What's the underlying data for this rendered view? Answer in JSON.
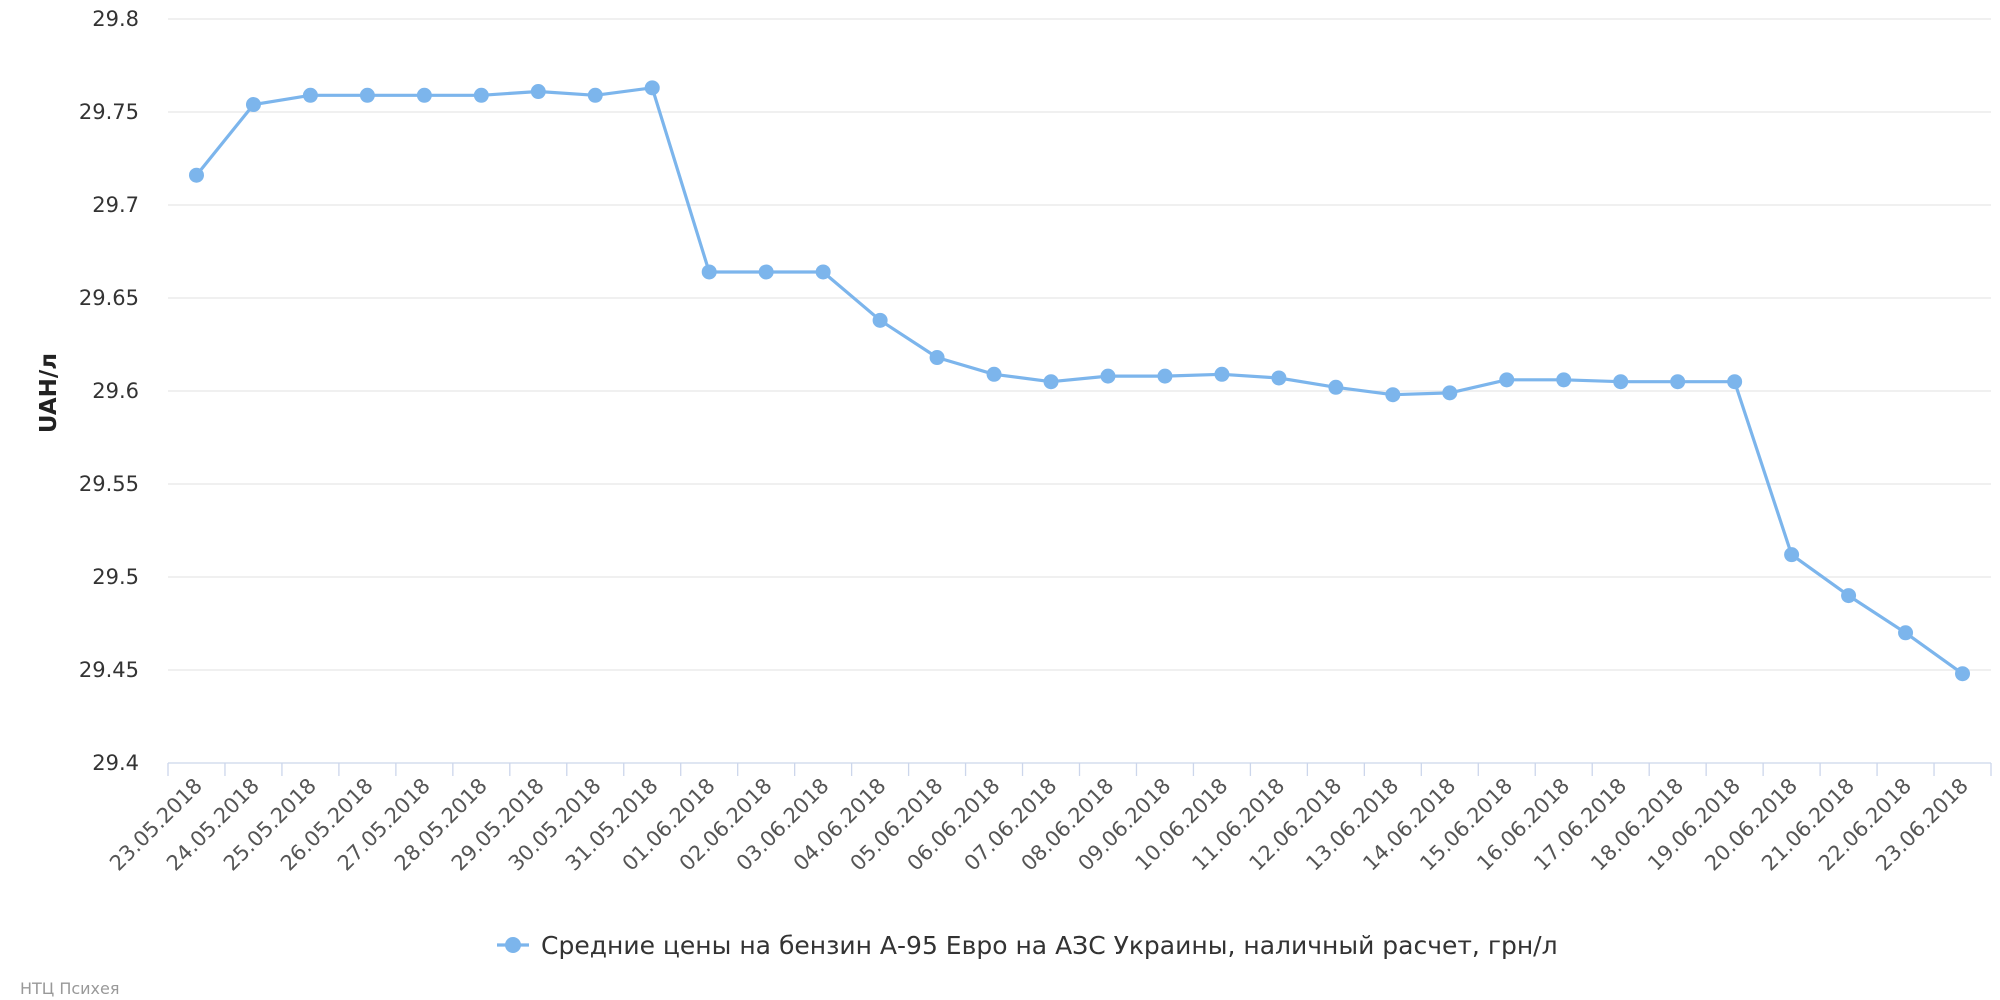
{
  "chart_data": {
    "type": "line",
    "ylabel": "UAH/л",
    "ylim": [
      29.4,
      29.8
    ],
    "yticks": [
      "29.4",
      "29.45",
      "29.5",
      "29.55",
      "29.6",
      "29.65",
      "29.7",
      "29.75",
      "29.8"
    ],
    "grid": true,
    "legend_position": "bottom-center",
    "categories": [
      "23.05.2018",
      "24.05.2018",
      "25.05.2018",
      "26.05.2018",
      "27.05.2018",
      "28.05.2018",
      "29.05.2018",
      "30.05.2018",
      "31.05.2018",
      "01.06.2018",
      "02.06.2018",
      "03.06.2018",
      "04.06.2018",
      "05.06.2018",
      "06.06.2018",
      "07.06.2018",
      "08.06.2018",
      "09.06.2018",
      "10.06.2018",
      "11.06.2018",
      "12.06.2018",
      "13.06.2018",
      "14.06.2018",
      "15.06.2018",
      "16.06.2018",
      "17.06.2018",
      "18.06.2018",
      "19.06.2018",
      "20.06.2018",
      "21.06.2018",
      "22.06.2018",
      "23.06.2018"
    ],
    "series": [
      {
        "name": "Средние цены на бензин А-95 Евро на АЗС Украины, наличный расчет, грн/л",
        "color": "#7cb5ec",
        "values": [
          29.716,
          29.754,
          29.759,
          29.759,
          29.759,
          29.759,
          29.761,
          29.759,
          29.763,
          29.664,
          29.664,
          29.664,
          29.638,
          29.618,
          29.609,
          29.605,
          29.608,
          29.608,
          29.609,
          29.607,
          29.602,
          29.598,
          29.599,
          29.606,
          29.606,
          29.605,
          29.605,
          29.605,
          29.512,
          29.49,
          29.47,
          29.448
        ]
      }
    ]
  },
  "credit": "НТЦ Психея"
}
